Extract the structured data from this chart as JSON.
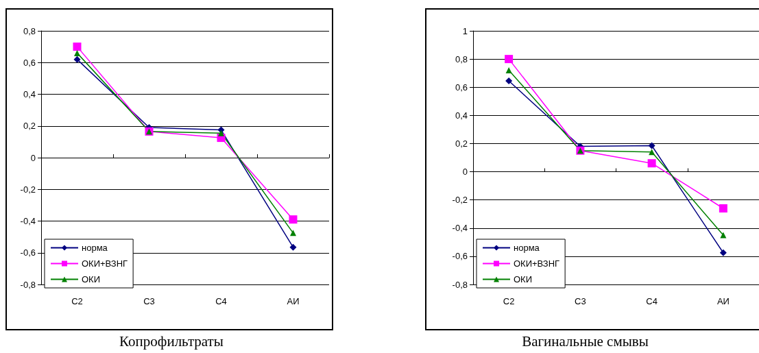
{
  "chart_data": [
    {
      "type": "line",
      "title": "Копрофильтраты",
      "categories": [
        "С2",
        "С3",
        "С4",
        "АИ"
      ],
      "ylim": [
        -0.8,
        0.8
      ],
      "yticks": [
        {
          "value": -0.8,
          "label": "-0,8"
        },
        {
          "value": -0.6,
          "label": "-0,6"
        },
        {
          "value": -0.4,
          "label": "-0,4"
        },
        {
          "value": -0.2,
          "label": "-0,2"
        },
        {
          "value": 0,
          "label": "0"
        },
        {
          "value": 0.2,
          "label": "0,2"
        },
        {
          "value": 0.4,
          "label": "0,4"
        },
        {
          "value": 0.6,
          "label": "0,6"
        },
        {
          "value": 0.8,
          "label": "0,8"
        }
      ],
      "grid": "y",
      "legend": "bottom left",
      "series": [
        {
          "name": "норма",
          "color": "#000080",
          "marker": "diamond",
          "values": [
            0.62,
            0.19,
            0.175,
            -0.565
          ]
        },
        {
          "name": "ОКИ+ВЗНГ",
          "color": "#ff00ff",
          "marker": "square",
          "values": [
            0.7,
            0.165,
            0.125,
            -0.39
          ]
        },
        {
          "name": "ОКИ",
          "color": "#008000",
          "marker": "triangle",
          "values": [
            0.66,
            0.165,
            0.155,
            -0.475
          ]
        }
      ]
    },
    {
      "type": "line",
      "title": "Вагинальные смывы",
      "categories": [
        "С2",
        "С3",
        "С4",
        "АИ"
      ],
      "ylim": [
        -0.8,
        1
      ],
      "yticks": [
        {
          "value": -0.8,
          "label": "-0,8"
        },
        {
          "value": -0.6,
          "label": "-0,6"
        },
        {
          "value": -0.4,
          "label": "-0,4"
        },
        {
          "value": -0.2,
          "label": "-0,2"
        },
        {
          "value": 0,
          "label": "0"
        },
        {
          "value": 0.2,
          "label": "0,2"
        },
        {
          "value": 0.4,
          "label": "0,4"
        },
        {
          "value": 0.6,
          "label": "0,6"
        },
        {
          "value": 0.8,
          "label": "0,8"
        },
        {
          "value": 1,
          "label": "1"
        }
      ],
      "grid": "y",
      "legend": "bottom left",
      "series": [
        {
          "name": "норма",
          "color": "#000080",
          "marker": "diamond",
          "values": [
            0.645,
            0.18,
            0.185,
            -0.575
          ]
        },
        {
          "name": "ОКИ+ВЗНГ",
          "color": "#ff00ff",
          "marker": "square",
          "values": [
            0.8,
            0.15,
            0.06,
            -0.26
          ]
        },
        {
          "name": "ОКИ",
          "color": "#008000",
          "marker": "triangle",
          "values": [
            0.72,
            0.15,
            0.14,
            -0.45
          ]
        }
      ]
    }
  ]
}
